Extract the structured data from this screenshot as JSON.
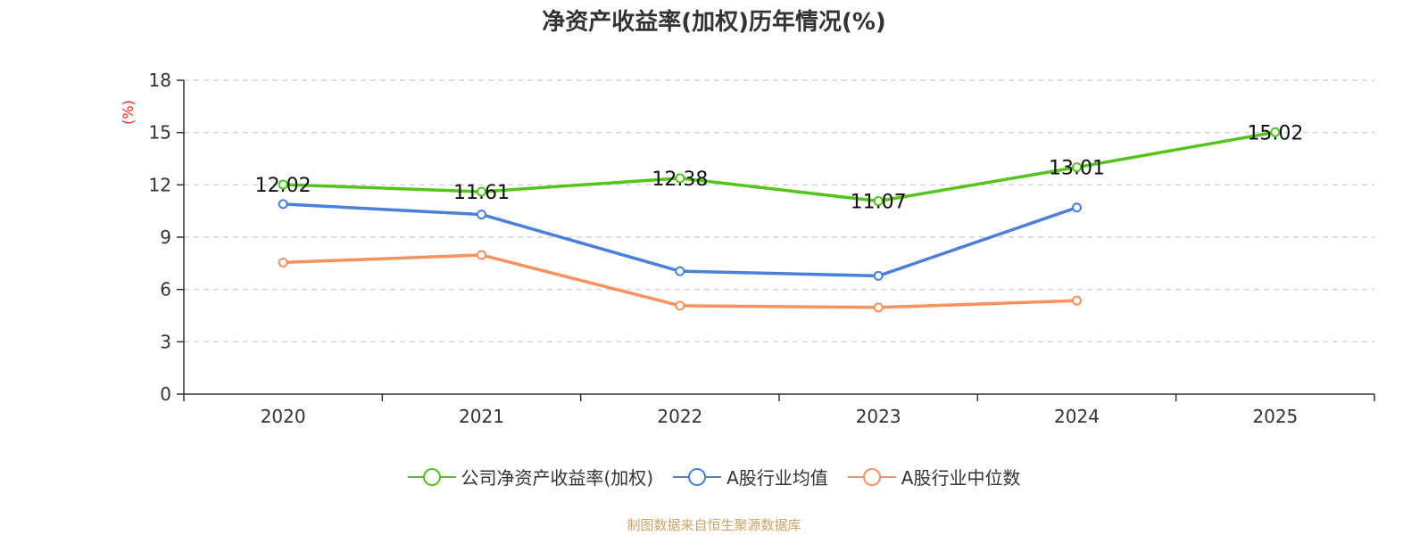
{
  "chart_data": {
    "type": "line",
    "title": "净资产收益率(加权)历年情况(%)",
    "ylabel": "(%)",
    "xlabel": "",
    "categories": [
      "2020",
      "2021",
      "2022",
      "2023",
      "2024",
      "2025"
    ],
    "ylim": [
      0,
      18
    ],
    "yticks": [
      0,
      3,
      6,
      9,
      12,
      15,
      18
    ],
    "grid": true,
    "series": [
      {
        "name": "公司净资产收益率(加权)",
        "color": "#52c41a",
        "values": [
          12.02,
          11.61,
          12.38,
          11.07,
          13.01,
          15.02
        ],
        "labels": [
          "12.02",
          "11.61",
          "12.38",
          "11.07",
          "13.01",
          "15.02"
        ]
      },
      {
        "name": "A股行业均值",
        "color": "#4a7fdc",
        "values": [
          10.9,
          10.3,
          7.05,
          6.78,
          10.7,
          null
        ]
      },
      {
        "name": "A股行业中位数",
        "color": "#f8915e",
        "values": [
          7.55,
          7.98,
          5.07,
          4.97,
          5.36,
          null
        ]
      }
    ],
    "legend_position": "bottom"
  },
  "source_note": "制图数据来自恒生聚源数据库",
  "colors": {
    "axis": "#333333",
    "grid": "#cccccc",
    "ylabel": "#e8251e",
    "source": "#c8a46a"
  }
}
